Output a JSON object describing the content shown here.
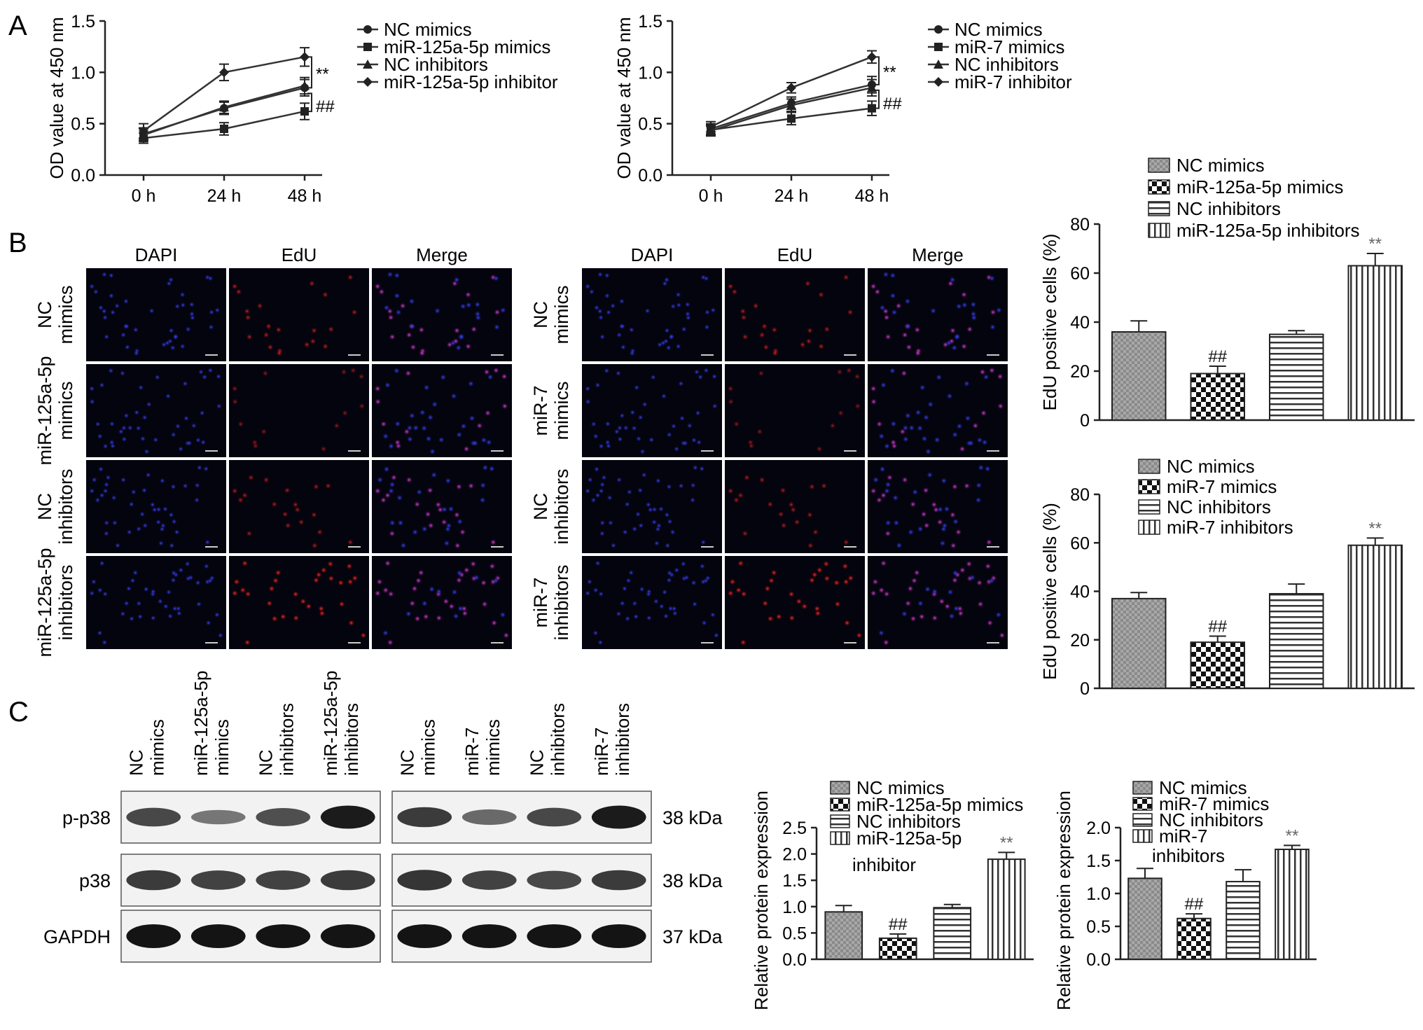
{
  "panel_letters": [
    "A",
    "B",
    "C"
  ],
  "line_chart_1": {
    "type": "line",
    "ylabel": "OD value at 450 nm",
    "x_categories": [
      "0 h",
      "24 h",
      "48 h"
    ],
    "y_ticks": [
      "0.0",
      "0.5",
      "1.0",
      "1.5"
    ],
    "ylim": [
      0,
      1.5
    ],
    "series": [
      {
        "name": "NC mimics",
        "values": [
          0.4,
          0.65,
          0.85
        ],
        "errors": [
          0.06,
          0.06,
          0.08
        ],
        "marker": "circle"
      },
      {
        "name": "miR-125a-5p mimics",
        "values": [
          0.36,
          0.45,
          0.62
        ],
        "errors": [
          0.05,
          0.06,
          0.08
        ],
        "marker": "square"
      },
      {
        "name": "NC inhibitors",
        "values": [
          0.39,
          0.66,
          0.87
        ],
        "errors": [
          0.06,
          0.06,
          0.08
        ],
        "marker": "triangle"
      },
      {
        "name": "miR-125a-5p inhibitor",
        "values": [
          0.43,
          1.0,
          1.15
        ],
        "errors": [
          0.07,
          0.08,
          0.09
        ],
        "marker": "star"
      }
    ],
    "annotations": [
      "**",
      "##"
    ]
  },
  "line_chart_2": {
    "type": "line",
    "ylabel": "OD value at 450 nm",
    "x_categories": [
      "0 h",
      "24 h",
      "48 h"
    ],
    "y_ticks": [
      "0.0",
      "0.5",
      "1.0",
      "1.5"
    ],
    "ylim": [
      0,
      1.5
    ],
    "series": [
      {
        "name": "NC mimics",
        "values": [
          0.45,
          0.7,
          0.88
        ],
        "errors": [
          0.05,
          0.06,
          0.08
        ],
        "marker": "circle"
      },
      {
        "name": "miR-7 mimics",
        "values": [
          0.44,
          0.55,
          0.65
        ],
        "errors": [
          0.05,
          0.06,
          0.07
        ],
        "marker": "square"
      },
      {
        "name": "NC inhibitors",
        "values": [
          0.43,
          0.68,
          0.85
        ],
        "errors": [
          0.05,
          0.06,
          0.08
        ],
        "marker": "triangle"
      },
      {
        "name": "miR-7 inhibitor",
        "values": [
          0.47,
          0.85,
          1.15
        ],
        "errors": [
          0.05,
          0.05,
          0.06
        ],
        "marker": "star"
      }
    ],
    "annotations": [
      "**",
      "##"
    ]
  },
  "micrographs": {
    "columns": [
      "DAPI",
      "EdU",
      "Merge"
    ],
    "left_rows": [
      "NC mimics",
      "miR-125a-5p mimics",
      "NC inhibitors",
      "miR-125a-5p inhibitors"
    ],
    "left_rows_split": [
      [
        "NC",
        "mimics"
      ],
      [
        "miR-125a-5p",
        "mimics"
      ],
      [
        "NC",
        "inhibitors"
      ],
      [
        "miR-125a-5p",
        "inhibitors"
      ]
    ],
    "right_rows_split": [
      [
        "NC",
        "mimics"
      ],
      [
        "miR-7",
        "mimics"
      ],
      [
        "NC",
        "inhibitors"
      ],
      [
        "miR-7",
        "inhibitors"
      ]
    ],
    "edu_intensity": [
      0.6,
      0.25,
      0.5,
      1.0
    ]
  },
  "bar_chart_1": {
    "type": "bar",
    "ylabel": "EdU positive cells (%)",
    "categories": [
      "NC mimics",
      "miR-125a-5p mimics",
      "NC inhibitors",
      "miR-125a-5p inhibitors"
    ],
    "values": [
      36,
      19,
      35,
      63
    ],
    "errors": [
      4.5,
      3,
      1.5,
      5
    ],
    "y_ticks": [
      "0",
      "20",
      "40",
      "60",
      "80"
    ],
    "ylim": [
      0,
      80
    ],
    "sig": [
      "",
      "##",
      "",
      "**"
    ]
  },
  "bar_chart_2": {
    "type": "bar",
    "ylabel": "EdU positive cells (%)",
    "categories": [
      "NC mimics",
      "miR-7 mimics",
      "NC inhibitors",
      "miR-7 inhibitors"
    ],
    "values": [
      37,
      19,
      39,
      59
    ],
    "errors": [
      2.5,
      2.5,
      4,
      3
    ],
    "y_ticks": [
      "0",
      "20",
      "40",
      "60",
      "80"
    ],
    "ylim": [
      0,
      80
    ],
    "sig": [
      "",
      "##",
      "",
      "**"
    ]
  },
  "western_blot": {
    "rows": [
      "p-p38",
      "p38",
      "GAPDH"
    ],
    "kda": [
      "38 kDa",
      "38 kDa",
      "37 kDa"
    ],
    "left_lanes": [
      [
        "NC",
        "mimics"
      ],
      [
        "miR-125a-5p",
        "mimics"
      ],
      [
        "NC",
        "inhibitors"
      ],
      [
        "miR-125a-5p",
        "inhibitors"
      ]
    ],
    "right_lanes": [
      [
        "NC",
        "mimics"
      ],
      [
        "miR-7",
        "mimics"
      ],
      [
        "NC",
        "inhibitors"
      ],
      [
        "miR-7",
        "inhibitors"
      ]
    ],
    "band_intensity_left": [
      [
        0.6,
        0.25,
        0.55,
        0.95
      ],
      [
        0.7,
        0.65,
        0.65,
        0.7
      ],
      [
        1,
        1,
        1,
        1
      ]
    ],
    "band_intensity_right": [
      [
        0.7,
        0.35,
        0.6,
        0.95
      ],
      [
        0.75,
        0.65,
        0.6,
        0.7
      ],
      [
        1,
        1,
        1,
        1
      ]
    ]
  },
  "bar_chart_3": {
    "type": "bar",
    "ylabel": "Relative protein expression",
    "legend": [
      "NC mimics",
      "miR-125a-5p mimics",
      "NC inhibitors",
      "miR-125a-5p",
      "inhibitor"
    ],
    "categories": [
      "NC mimics",
      "miR-125a-5p mimics",
      "NC inhibitors",
      "miR-125a-5p inhibitor"
    ],
    "values": [
      0.9,
      0.4,
      0.98,
      1.9
    ],
    "errors": [
      0.12,
      0.08,
      0.06,
      0.13
    ],
    "y_ticks": [
      "0.0",
      "0.5",
      "1.0",
      "1.5",
      "2.0",
      "2.5"
    ],
    "ylim": [
      0,
      2.5
    ],
    "sig": [
      "",
      "##",
      "",
      "**"
    ]
  },
  "bar_chart_4": {
    "type": "bar",
    "ylabel": "Relative protein expression",
    "legend": [
      "NC mimics",
      "miR-7 mimics",
      "NC inhibitors",
      "miR-7",
      "inhibitors"
    ],
    "categories": [
      "NC mimics",
      "miR-7 mimics",
      "NC inhibitors",
      "miR-7 inhibitors"
    ],
    "values": [
      1.23,
      0.62,
      1.18,
      1.67
    ],
    "errors": [
      0.15,
      0.07,
      0.18,
      0.06
    ],
    "y_ticks": [
      "0.0",
      "0.5",
      "1.0",
      "1.5",
      "2.0"
    ],
    "ylim": [
      0,
      2.0
    ],
    "sig": [
      "",
      "##",
      "",
      "**"
    ]
  }
}
